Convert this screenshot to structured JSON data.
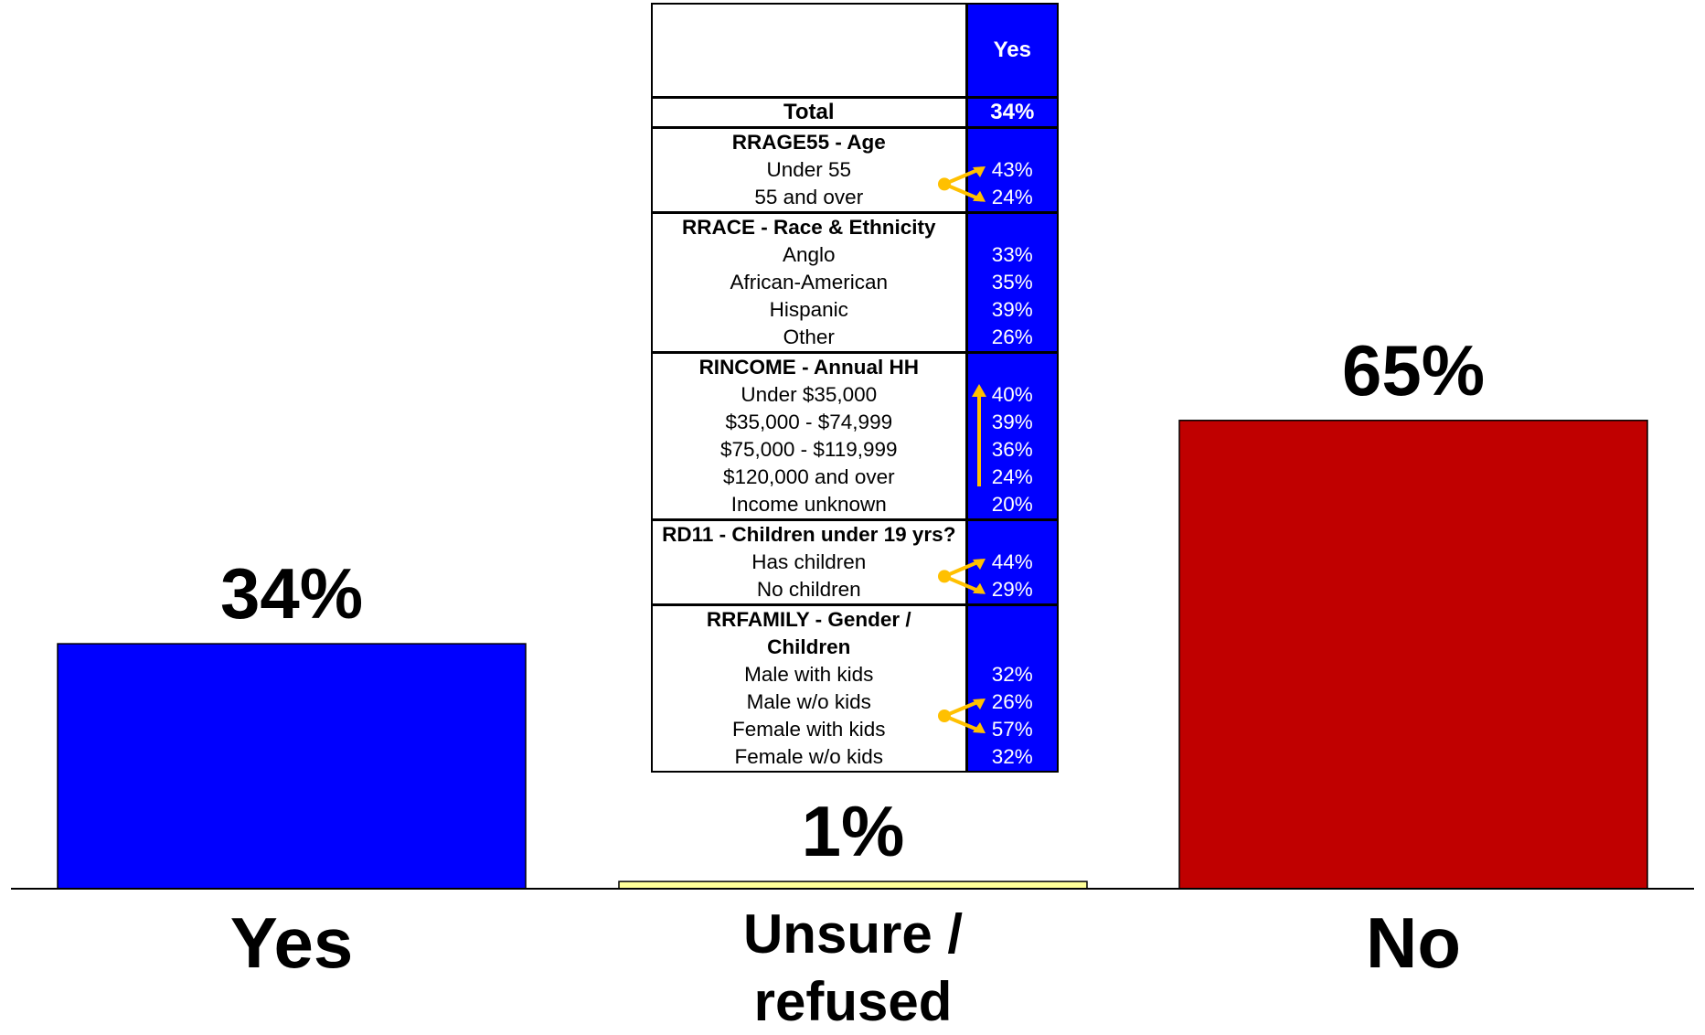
{
  "chart_data": {
    "type": "bar",
    "categories": [
      "Yes",
      "Unsure / refused",
      "No"
    ],
    "values": [
      34,
      1,
      65
    ],
    "value_labels": [
      "34%",
      "1%",
      "65%"
    ],
    "colors": [
      "#0000ff",
      "#ffff99",
      "#c00000"
    ],
    "ylim": [
      0,
      100
    ],
    "grid": false,
    "legend": "none"
  },
  "crosstab": {
    "column_header": "Yes",
    "total": {
      "label": "Total",
      "value": "34%"
    },
    "groups": [
      {
        "title": "RRAGE55 - Age",
        "rows": [
          {
            "label": "Under 55",
            "value": "43%"
          },
          {
            "label": "55 and over",
            "value": "24%"
          }
        ]
      },
      {
        "title": "RRACE - Race & Ethnicity",
        "rows": [
          {
            "label": "Anglo",
            "value": "33%"
          },
          {
            "label": "African-American",
            "value": "35%"
          },
          {
            "label": "Hispanic",
            "value": "39%"
          },
          {
            "label": "Other",
            "value": "26%"
          }
        ]
      },
      {
        "title": "RINCOME - Annual HH",
        "rows": [
          {
            "label": "Under $35,000",
            "value": "40%"
          },
          {
            "label": "$35,000 - $74,999",
            "value": "39%"
          },
          {
            "label": "$75,000 - $119,999",
            "value": "36%"
          },
          {
            "label": "$120,000 and over",
            "value": "24%"
          },
          {
            "label": "Income unknown",
            "value": "20%"
          }
        ]
      },
      {
        "title": "RD11 - Children under 19 yrs?",
        "rows": [
          {
            "label": "Has children",
            "value": "44%"
          },
          {
            "label": "No children",
            "value": "29%"
          }
        ]
      },
      {
        "title": "RRFAMILY - Gender /",
        "title2": "Children",
        "rows": [
          {
            "label": "Male with kids",
            "value": "32%"
          },
          {
            "label": "Male w/o kids",
            "value": "26%"
          },
          {
            "label": "Female with kids",
            "value": "57%"
          },
          {
            "label": "Female w/o kids",
            "value": "32%"
          }
        ]
      }
    ],
    "arrow_color": "#ffc000"
  }
}
